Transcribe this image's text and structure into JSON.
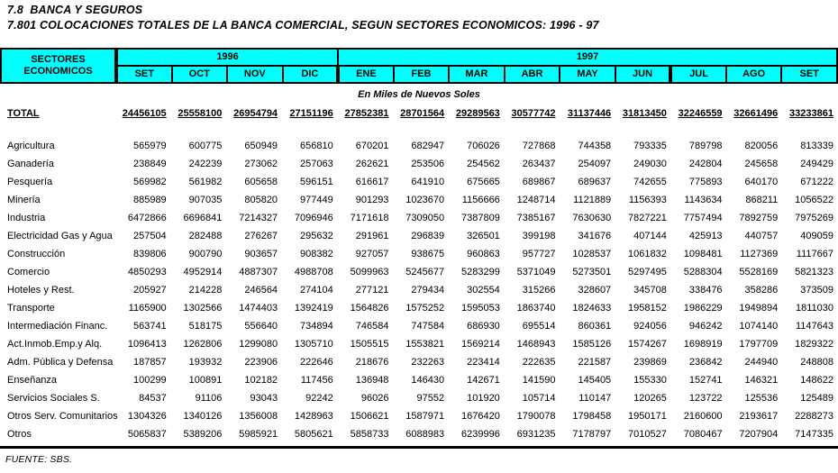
{
  "page": {
    "title1": "7.8  BANCA Y SEGUROS",
    "title2": "7.801 COLOCACIONES TOTALES DE LA BANCA COMERCIAL, SEGUN SECTORES ECONOMICOS: 1996 - 97",
    "units_label": "En Miles de Nuevos Soles",
    "source": "FUENTE: SBS."
  },
  "colors": {
    "header_bg": "#00ffff",
    "border": "#000000",
    "text": "#000000"
  },
  "table": {
    "corner_header": [
      "SECTORES",
      "ECONOMICOS"
    ],
    "year_groups": [
      {
        "label": "1996",
        "span": 4
      },
      {
        "label": "1997",
        "span": 9
      }
    ],
    "months": [
      "SET",
      "OCT",
      "NOV",
      "DIC",
      "ENE",
      "FEB",
      "MAR",
      "ABR",
      "MAY",
      "JUN",
      "JUL",
      "AGO",
      "SET"
    ],
    "total_row": {
      "label": "TOTAL",
      "values": [
        "24456105",
        "25558100",
        "26954794",
        "27151196",
        "27852381",
        "28701564",
        "29289563",
        "30577742",
        "31137446",
        "31813450",
        "32246559",
        "32661496",
        "33233861"
      ]
    },
    "rows": [
      {
        "label": "Agricultura",
        "values": [
          "565979",
          "600775",
          "650949",
          "656810",
          "670201",
          "682947",
          "706026",
          "727868",
          "744358",
          "793335",
          "789798",
          "820056",
          "813339"
        ]
      },
      {
        "label": "Ganadería",
        "values": [
          "238849",
          "242239",
          "273062",
          "257063",
          "262621",
          "253506",
          "254562",
          "263437",
          "254097",
          "249030",
          "242804",
          "245658",
          "249429"
        ]
      },
      {
        "label": "Pesquería",
        "values": [
          "569982",
          "561982",
          "605658",
          "596151",
          "616617",
          "641910",
          "675665",
          "689867",
          "689637",
          "742655",
          "775893",
          "640170",
          "671222"
        ]
      },
      {
        "label": "Minería",
        "values": [
          "885989",
          "907035",
          "805820",
          "977449",
          "901293",
          "1023670",
          "1156666",
          "1248714",
          "1121889",
          "1156393",
          "1143634",
          "868211",
          "1056522"
        ]
      },
      {
        "label": "Industria",
        "values": [
          "6472866",
          "6696841",
          "7214327",
          "7096946",
          "7171618",
          "7309050",
          "7387809",
          "7385167",
          "7630630",
          "7827221",
          "7757494",
          "7892759",
          "7975269"
        ]
      },
      {
        "label": "Electricidad Gas y Agua",
        "values": [
          "257504",
          "282488",
          "276267",
          "295632",
          "291961",
          "296839",
          "326501",
          "399198",
          "341676",
          "407144",
          "425913",
          "440757",
          "409059"
        ]
      },
      {
        "label": "Construcción",
        "values": [
          "839806",
          "900790",
          "903657",
          "908382",
          "927057",
          "938675",
          "960863",
          "957727",
          "1028537",
          "1061832",
          "1098481",
          "1127369",
          "1117667"
        ]
      },
      {
        "label": "Comercio",
        "values": [
          "4850293",
          "4952914",
          "4887307",
          "4988708",
          "5099963",
          "5245677",
          "5283299",
          "5371049",
          "5273501",
          "5297495",
          "5288304",
          "5528169",
          "5821323"
        ]
      },
      {
        "label": "Hoteles y Rest.",
        "values": [
          "205927",
          "214228",
          "246564",
          "274104",
          "277121",
          "279434",
          "302554",
          "315266",
          "328607",
          "345708",
          "338476",
          "358286",
          "373509"
        ]
      },
      {
        "label": "Transporte",
        "values": [
          "1165900",
          "1302566",
          "1474403",
          "1392419",
          "1564826",
          "1575252",
          "1595053",
          "1863740",
          "1824633",
          "1958152",
          "1986229",
          "1949894",
          "1811030"
        ]
      },
      {
        "label": "Intermediación Financ.",
        "values": [
          "563741",
          "518175",
          "556640",
          "734894",
          "746584",
          "747584",
          "686930",
          "695514",
          "860361",
          "924056",
          "946242",
          "1074140",
          "1147643"
        ]
      },
      {
        "label": "Act.Inmob.Emp.y Alq.",
        "values": [
          "1096413",
          "1262806",
          "1299080",
          "1305710",
          "1505515",
          "1553821",
          "1569214",
          "1468943",
          "1585126",
          "1574267",
          "1698919",
          "1797709",
          "1829322"
        ]
      },
      {
        "label": "Adm. Pública y Defensa",
        "values": [
          "187857",
          "193932",
          "223906",
          "222646",
          "218676",
          "232263",
          "223414",
          "222635",
          "221587",
          "239869",
          "236842",
          "244940",
          "248808"
        ]
      },
      {
        "label": "Enseñanza",
        "values": [
          "100299",
          "100891",
          "102182",
          "117456",
          "136948",
          "146430",
          "142671",
          "141590",
          "145405",
          "155330",
          "152741",
          "146321",
          "148622"
        ]
      },
      {
        "label": "Servicios Sociales S.",
        "values": [
          "84537",
          "91106",
          "93043",
          "92242",
          "96026",
          "97552",
          "101920",
          "105714",
          "110147",
          "120265",
          "123722",
          "125536",
          "125489"
        ]
      },
      {
        "label": "Otros Serv. Comunitarios",
        "values": [
          "1304326",
          "1340126",
          "1356008",
          "1428963",
          "1506621",
          "1587971",
          "1676420",
          "1790078",
          "1798458",
          "1950171",
          "2160600",
          "2193617",
          "2288273"
        ]
      },
      {
        "label": "Otros",
        "values": [
          "5065837",
          "5389206",
          "5985921",
          "5805621",
          "5858733",
          "6088983",
          "6239996",
          "6931235",
          "7178797",
          "7010527",
          "7080467",
          "7207904",
          "7147335"
        ]
      }
    ]
  }
}
